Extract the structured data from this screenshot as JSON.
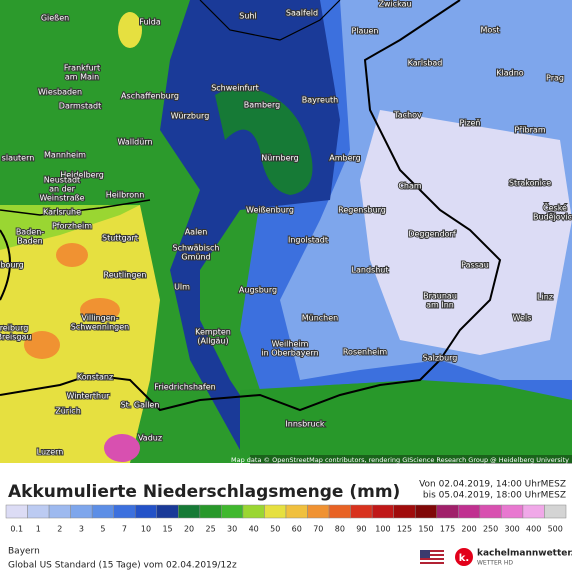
{
  "map": {
    "cities": [
      [
        "Gießen"
      ],
      [
        "Fulda"
      ],
      [
        "Suhl"
      ],
      [
        "Saalfeld"
      ],
      [
        "Zwickau"
      ],
      [
        "Plauen"
      ],
      [
        "Most"
      ],
      [
        "Frankfurt",
        "am Main"
      ],
      [
        "Wiesbaden"
      ],
      [
        "Darmstadt"
      ],
      [
        "Aschaffenburg"
      ],
      [
        "Schweinfurt"
      ],
      [
        "Bamberg"
      ],
      [
        "Bayreuth"
      ],
      [
        "Karlsbad"
      ],
      [
        "Kladno"
      ],
      [
        "Prag"
      ],
      [
        "Würzburg"
      ],
      [
        "Walldürn"
      ],
      [
        "Tachov"
      ],
      [
        "Pizeň"
      ],
      [
        "Příbram"
      ],
      [
        "slautern"
      ],
      [
        "Mannheim"
      ],
      [
        "Heidelberg"
      ],
      [
        "Nürnberg"
      ],
      [
        "Amberg"
      ],
      [
        "Neustadt",
        "an der",
        "Weinstraße"
      ],
      [
        "Heilbronn"
      ],
      [
        "Cham"
      ],
      [
        "Strakonice"
      ],
      [
        "Karlsruhe"
      ],
      [
        "Weißenburg"
      ],
      [
        "Regensburg"
      ],
      [
        "České",
        "Budějovice"
      ],
      [
        "Baden-",
        "Baden"
      ],
      [
        "Pforzheim"
      ],
      [
        "Stuttgart"
      ],
      [
        "Aalen"
      ],
      [
        "Schwäbisch",
        "Gmünd"
      ],
      [
        "Ingolstadt"
      ],
      [
        "Deggendorf"
      ],
      [
        "Reutlingen"
      ],
      [
        "Landshut"
      ],
      [
        "Passau"
      ],
      [
        "sbourg"
      ],
      [
        "Ulm"
      ],
      [
        "Augsburg"
      ],
      [
        "Braunau",
        "am Inn"
      ],
      [
        "Linz"
      ],
      [
        "Villingen-",
        "Schwenningen"
      ],
      [
        "reiburg",
        "Breisgau"
      ],
      [
        "München"
      ],
      [
        "Wels"
      ],
      [
        "Kempten",
        "(Allgäu)"
      ],
      [
        "Weilheim",
        "in Oberbayern"
      ],
      [
        "Rosenheim"
      ],
      [
        "Salzburg"
      ],
      [
        "Konstanz"
      ],
      [
        "Friedrichshafen"
      ],
      [
        "Winterthur"
      ],
      [
        "St. Gallen"
      ],
      [
        "Zürich"
      ],
      [
        "Innsbruck"
      ],
      [
        "Vaduz"
      ],
      [
        "Luzern"
      ]
    ],
    "attribution": "Map data © OpenStreetMap contributors, rendering GIScience Research Group @ Heidelberg University"
  },
  "header": {
    "title": "Akkumulierte Niederschlagsmenge (mm)",
    "from": "Von 02.04.2019, 14:00 UhrMESZ",
    "to": "bis 05.04.2019, 18:00 UhrMESZ"
  },
  "legend": [
    {
      "label": "0.1",
      "color": "#dcdcf5"
    },
    {
      "label": "1",
      "color": "#bccbf2"
    },
    {
      "label": "2",
      "color": "#9db9ef"
    },
    {
      "label": "3",
      "color": "#7ea6ec"
    },
    {
      "label": "5",
      "color": "#5c8ee6"
    },
    {
      "label": "7",
      "color": "#3c70de"
    },
    {
      "label": "10",
      "color": "#2352c8"
    },
    {
      "label": "15",
      "color": "#1a3a98"
    },
    {
      "label": "20",
      "color": "#167a36"
    },
    {
      "label": "25",
      "color": "#28982a"
    },
    {
      "label": "30",
      "color": "#40b82e"
    },
    {
      "label": "40",
      "color": "#9ad632"
    },
    {
      "label": "50",
      "color": "#e6e040"
    },
    {
      "label": "60",
      "color": "#f0c03e"
    },
    {
      "label": "70",
      "color": "#f09232"
    },
    {
      "label": "80",
      "color": "#e86224"
    },
    {
      "label": "90",
      "color": "#d8321e"
    },
    {
      "label": "100",
      "color": "#c01818"
    },
    {
      "label": "125",
      "color": "#a00c0c"
    },
    {
      "label": "150",
      "color": "#800808"
    },
    {
      "label": "175",
      "color": "#a0206a"
    },
    {
      "label": "200",
      "color": "#c03090"
    },
    {
      "label": "250",
      "color": "#d850b0"
    },
    {
      "label": "300",
      "color": "#e878d0"
    },
    {
      "label": "400",
      "color": "#f0a8e8"
    },
    {
      "label": "500",
      "color": "#d4d4d4"
    }
  ],
  "footer": {
    "region": "Bayern",
    "model": "Global US Standard (15 Tage) vom 02.04.2019/12z",
    "brand": "kachelmannwetter.com",
    "brand_sub": "WETTER HD",
    "logo": "k."
  }
}
